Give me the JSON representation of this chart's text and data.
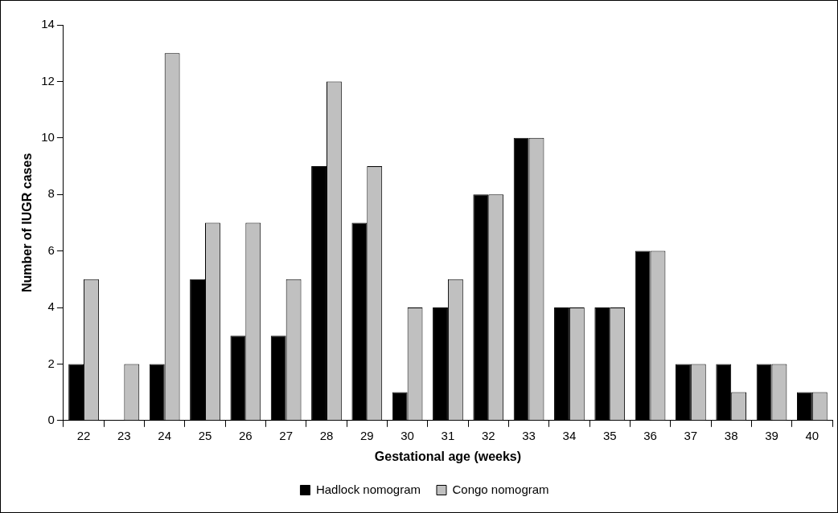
{
  "chart_data": {
    "type": "bar",
    "xlabel": "Gestational age (weeks)",
    "ylabel": "Number of IUGR cases",
    "categories": [
      "22",
      "23",
      "24",
      "25",
      "26",
      "27",
      "28",
      "29",
      "30",
      "31",
      "32",
      "33",
      "34",
      "35",
      "36",
      "37",
      "38",
      "39",
      "40"
    ],
    "series": [
      {
        "name": "Hadlock nomogram",
        "color": "#000000",
        "values": [
          2,
          0,
          2,
          5,
          3,
          3,
          9,
          7,
          1,
          4,
          8,
          10,
          4,
          4,
          6,
          2,
          2,
          2,
          1
        ]
      },
      {
        "name": "Congo nomogram",
        "color": "#c0c0c0",
        "values": [
          5,
          2,
          13,
          7,
          7,
          5,
          12,
          9,
          4,
          5,
          8,
          10,
          4,
          4,
          6,
          2,
          1,
          2,
          1
        ]
      }
    ],
    "ylim": [
      0,
      14
    ],
    "yticks": [
      0,
      2,
      4,
      6,
      8,
      10,
      12,
      14
    ],
    "grid": false,
    "legend": "bottom"
  }
}
